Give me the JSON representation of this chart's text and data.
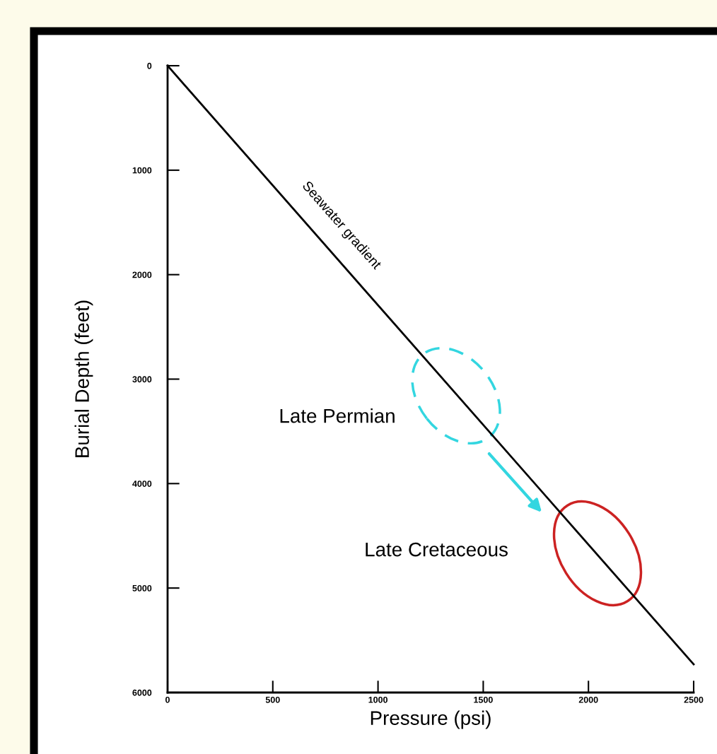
{
  "chart_data": {
    "type": "line",
    "xlabel": "Pressure (psi)",
    "ylabel": "Burial Depth (feet)",
    "series": [
      {
        "name": "Seawater gradient",
        "color": "#000000",
        "x": [
          0,
          2500
        ],
        "values": [
          0,
          5730
        ]
      }
    ],
    "annotations": [
      "Late Permian",
      "Late Cretaceous"
    ],
    "xlim": [
      0,
      2500
    ],
    "xticks": [
      0,
      500,
      1000,
      1500,
      2000,
      2500
    ],
    "ylim": [
      6000,
      0
    ],
    "yticks": [
      0,
      1000,
      2000,
      3000,
      4000,
      5000,
      6000
    ],
    "grid": false,
    "legend": false,
    "marker": "none",
    "line_style": "solid"
  }
}
